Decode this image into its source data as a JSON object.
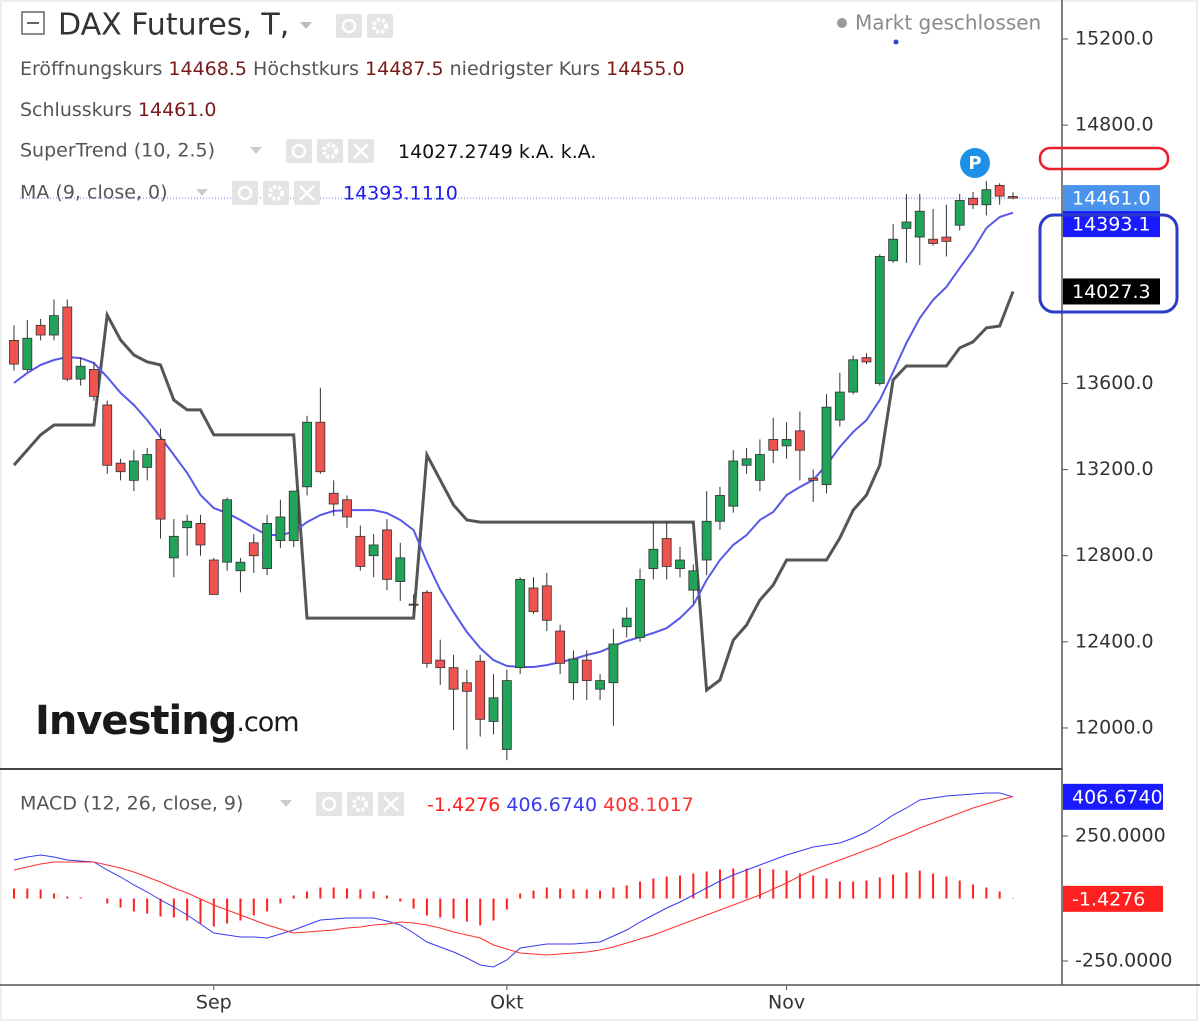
{
  "header": {
    "title": "DAX Futures, T,",
    "status": "Markt geschlossen",
    "ohlc": [
      {
        "label": "Eröffnungskurs",
        "value": "14468.5"
      },
      {
        "label": "Höchstkurs",
        "value": "14487.5"
      },
      {
        "label": "niedrigster Kurs",
        "value": "14455.0"
      },
      {
        "label": "Schlusskurs",
        "value": "14461.0"
      }
    ]
  },
  "logo": {
    "brand": "Investing",
    "suffix": ".com"
  },
  "marker": "P",
  "chart_data": [
    {
      "type": "candlestick",
      "up_color": "#21a35a",
      "down_color": "#ef5350",
      "last_label": "14461.0",
      "last_color": "#4a94ee",
      "open": [
        13800,
        13665,
        13870,
        13825,
        13955,
        13620,
        13665,
        13500,
        13230,
        13150,
        13210,
        13340,
        12790,
        12930,
        12950,
        12780,
        12770,
        12730,
        12860,
        12740,
        12870,
        12870,
        13120,
        13420,
        13090,
        13060,
        12890,
        12800,
        12920,
        12680,
        12575,
        12630,
        12315,
        12280,
        12210,
        12310,
        12030,
        11900,
        12280,
        12650,
        12660,
        12450,
        12210,
        12315,
        12180,
        12210,
        12470,
        12420,
        12740,
        12880,
        12740,
        12640,
        12780,
        12960,
        13030,
        13220,
        13150,
        13340,
        13310,
        13380,
        13160,
        13130,
        13430,
        13560,
        13720,
        13600,
        14170,
        14320,
        14280,
        14270,
        14280,
        14335,
        14460,
        14430,
        14520,
        14468.5
      ],
      "high": [
        13870,
        13895,
        13900,
        13990,
        13990,
        13720,
        13700,
        13520,
        13250,
        13290,
        13300,
        13390,
        12970,
        12990,
        12990,
        12790,
        13070,
        12790,
        12900,
        12990,
        13060,
        13100,
        13450,
        13580,
        13150,
        13080,
        12940,
        12900,
        12970,
        12860,
        12620,
        12640,
        12410,
        12340,
        12270,
        12340,
        12250,
        12270,
        12700,
        12700,
        12720,
        12480,
        12360,
        12360,
        12250,
        12460,
        12560,
        12740,
        12960,
        12960,
        12840,
        12760,
        13100,
        13120,
        13290,
        13300,
        13340,
        13440,
        13420,
        13470,
        13200,
        13550,
        13650,
        13730,
        13740,
        14200,
        14340,
        14480,
        14480,
        14410,
        14430,
        14480,
        14490,
        14540,
        14530,
        14487.5
      ],
      "low": [
        13660,
        13655,
        13800,
        13800,
        13610,
        13590,
        13520,
        13180,
        13150,
        13100,
        13150,
        12880,
        12700,
        12800,
        12800,
        12620,
        12730,
        12630,
        12720,
        12710,
        12835,
        12840,
        13080,
        13180,
        12985,
        12930,
        12730,
        12700,
        12640,
        12590,
        12540,
        12280,
        12200,
        11990,
        11900,
        11960,
        11970,
        11850,
        12250,
        12530,
        12450,
        12250,
        12130,
        12130,
        12130,
        12010,
        12420,
        12400,
        12690,
        12690,
        12700,
        12580,
        12710,
        12920,
        13000,
        13180,
        13100,
        13230,
        13250,
        13150,
        13050,
        13090,
        13400,
        13550,
        13690,
        13590,
        14160,
        14160,
        14150,
        14240,
        14190,
        14310,
        14410,
        14380,
        14430,
        14455
      ],
      "close": [
        13690,
        13810,
        13825,
        13915,
        13620,
        13680,
        13540,
        13220,
        13190,
        13240,
        13270,
        12970,
        12890,
        12960,
        12850,
        12620,
        13060,
        12770,
        12800,
        12950,
        12980,
        13100,
        13420,
        13190,
        13040,
        12980,
        12750,
        12850,
        12690,
        12790,
        12570,
        12300,
        12280,
        12180,
        12170,
        12040,
        12140,
        12220,
        12690,
        12540,
        12500,
        12300,
        12320,
        12220,
        12220,
        12390,
        12510,
        12690,
        12830,
        12750,
        12780,
        12730,
        12960,
        13080,
        13240,
        13250,
        13270,
        13290,
        13340,
        13290,
        13150,
        13490,
        13560,
        13710,
        13700,
        14190,
        14270,
        14350,
        14400,
        14250,
        14260,
        14450,
        14430,
        14500,
        14470,
        14461
      ],
      "series": [
        {
          "name": "SuperTrend (10, 2.5)",
          "color": "#555555",
          "readout": [
            "14027.2749",
            "k.A.",
            "k.A."
          ],
          "readout_color": "#111111",
          "last_label": "14027.3",
          "last_color": "#000000",
          "values": [
            13221,
            13291,
            13361,
            13407,
            13407,
            13407,
            13407,
            13918,
            13802,
            13732,
            13700,
            13686,
            13523,
            13477,
            13477,
            13361,
            13361,
            13361,
            13361,
            13361,
            13361,
            13361,
            12510,
            12510,
            12510,
            12510,
            12510,
            12510,
            12510,
            12510,
            12510,
            13268,
            13152,
            13035,
            12966,
            12956,
            12956,
            12956,
            12956,
            12956,
            12956,
            12956,
            12956,
            12956,
            12956,
            12956,
            12956,
            12956,
            12956,
            12956,
            12956,
            12956,
            12176,
            12223,
            12408,
            12478,
            12594,
            12664,
            12780,
            12780,
            12780,
            12780,
            12882,
            13012,
            13082,
            13221,
            13616,
            13681,
            13681,
            13681,
            13681,
            13765,
            13793,
            13858,
            13867,
            14027.2749
          ]
        },
        {
          "name": "MA (9, close, 0)",
          "color": "#5858e8",
          "readout": [
            "14393.1110"
          ],
          "readout_color": "#1a1aee",
          "last_label": "14393.1",
          "last_color": "#1a1aff",
          "values": [
            13602,
            13649,
            13686,
            13709,
            13723,
            13718,
            13695,
            13630,
            13556,
            13500,
            13430,
            13351,
            13268,
            13184,
            13082,
            13021,
            12998,
            12966,
            12929,
            12896,
            12896,
            12910,
            12956,
            12989,
            13008,
            13012,
            13012,
            13012,
            12998,
            12966,
            12919,
            12771,
            12641,
            12538,
            12445,
            12371,
            12315,
            12288,
            12283,
            12283,
            12292,
            12306,
            12320,
            12339,
            12353,
            12380,
            12404,
            12422,
            12441,
            12464,
            12510,
            12571,
            12687,
            12780,
            12850,
            12896,
            12966,
            13003,
            13082,
            13119,
            13152,
            13221,
            13305,
            13375,
            13430,
            13523,
            13653,
            13788,
            13904,
            13988,
            14048,
            14136,
            14220,
            14322,
            14373,
            14393.111
          ]
        }
      ],
      "ylim": [
        11814,
        15381
      ],
      "yticks": [
        {
          "value": 12000,
          "label": "12000.0"
        },
        {
          "value": 12400,
          "label": "12400.0"
        },
        {
          "value": 12800,
          "label": "12800.0"
        },
        {
          "value": 13200,
          "label": "13200.0"
        },
        {
          "value": 13600,
          "label": "13600.0"
        },
        {
          "value": 14000,
          "label": "14000.0"
        },
        {
          "value": 14400,
          "label": "14400.0"
        },
        {
          "value": 14800,
          "label": "14800.0"
        },
        {
          "value": 15200,
          "label": "15200.0"
        }
      ],
      "grid": false
    },
    {
      "type": "macd",
      "title": "MACD (12, 26, close, 9)",
      "categories": [
        null,
        null,
        null,
        null,
        null,
        null,
        null,
        null,
        null,
        null,
        null,
        null,
        null,
        null,
        null,
        "Sep",
        null,
        null,
        null,
        null,
        null,
        null,
        null,
        null,
        null,
        null,
        null,
        null,
        null,
        null,
        null,
        null,
        null,
        null,
        null,
        null,
        null,
        "Okt",
        null,
        null,
        null,
        null,
        null,
        null,
        null,
        null,
        null,
        null,
        null,
        null,
        null,
        null,
        null,
        null,
        null,
        null,
        null,
        null,
        "Nov",
        null,
        null,
        null,
        null,
        null,
        null,
        null,
        null,
        null,
        null,
        null,
        null,
        null,
        null,
        null,
        null,
        null
      ],
      "histogram": {
        "color": "#ff2020",
        "readout": "-1.4276",
        "values": [
          40,
          40,
          36,
          20,
          8,
          4,
          0,
          -20,
          -36,
          -52,
          -60,
          -72,
          -76,
          -88,
          -100,
          -112,
          -100,
          -88,
          -68,
          -52,
          -20,
          12,
          28,
          44,
          44,
          40,
          36,
          28,
          12,
          -12,
          -40,
          -68,
          -76,
          -80,
          -92,
          -108,
          -88,
          -44,
          20,
          32,
          44,
          40,
          36,
          36,
          32,
          44,
          52,
          68,
          80,
          88,
          92,
          100,
          108,
          116,
          120,
          120,
          120,
          116,
          112,
          100,
          92,
          80,
          68,
          68,
          72,
          84,
          96,
          104,
          112,
          100,
          88,
          72,
          56,
          44,
          28,
          -1.4276
        ]
      },
      "series": [
        {
          "color": "#3a3aee",
          "readout": "406.6740",
          "tag_color": "#1a1aff",
          "values": [
            154,
            166,
            174,
            166,
            154,
            150,
            146,
            114,
            86,
            54,
            26,
            -6,
            -34,
            -66,
            -102,
            -138,
            -146,
            -154,
            -154,
            -158,
            -142,
            -126,
            -106,
            -86,
            -82,
            -78,
            -78,
            -78,
            -90,
            -106,
            -138,
            -174,
            -194,
            -214,
            -238,
            -266,
            -274,
            -246,
            -198,
            -190,
            -182,
            -182,
            -182,
            -178,
            -174,
            -150,
            -126,
            -94,
            -66,
            -38,
            -14,
            14,
            42,
            70,
            94,
            114,
            134,
            154,
            174,
            190,
            206,
            214,
            222,
            242,
            266,
            298,
            334,
            362,
            394,
            402,
            410,
            414,
            418,
            422,
            422,
            406.674
          ]
        },
        {
          "color": "#ff3030",
          "readout": "408.1017",
          "values": [
            114,
            126,
            138,
            146,
            146,
            146,
            146,
            134,
            122,
            106,
            86,
            66,
            42,
            22,
            -2,
            -26,
            -46,
            -66,
            -86,
            -106,
            -122,
            -138,
            -134,
            -130,
            -126,
            -118,
            -114,
            -106,
            -102,
            -94,
            -98,
            -106,
            -118,
            -134,
            -146,
            -158,
            -186,
            -202,
            -218,
            -222,
            -226,
            -222,
            -218,
            -214,
            -206,
            -194,
            -178,
            -162,
            -146,
            -126,
            -106,
            -86,
            -66,
            -46,
            -26,
            -6,
            14,
            38,
            62,
            90,
            114,
            134,
            154,
            174,
            194,
            214,
            238,
            258,
            282,
            302,
            322,
            342,
            362,
            378,
            394,
            408.1017
          ]
        }
      ],
      "ylim": [
        -346,
        514
      ],
      "yticks": [
        {
          "value": -250,
          "label": "-250.0000"
        },
        {
          "value": 250,
          "label": "250.0000"
        }
      ],
      "grid": false
    }
  ]
}
